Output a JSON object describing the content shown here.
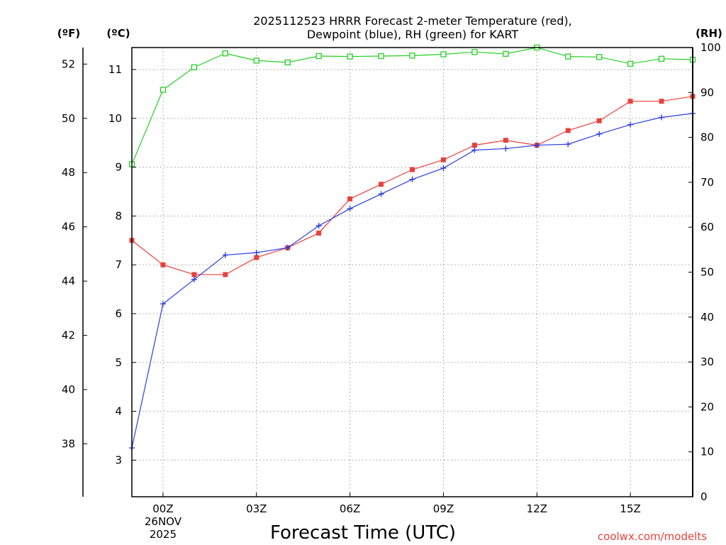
{
  "chart_data": {
    "type": "line",
    "title_lines": [
      "2025112523 HRRR Forecast 2-meter Temperature (red),",
      "Dewpoint (blue), RH (green) for KART"
    ],
    "xlabel": "Forecast Time (UTC)",
    "credit": "coolwx.com/modelts",
    "units": {
      "fahrenheit": "(ºF)",
      "celsius": "(ºC)",
      "rh": "(RH)"
    },
    "x_hours": [
      -1,
      0,
      1,
      2,
      3,
      4,
      5,
      6,
      7,
      8,
      9,
      10,
      11,
      12,
      13,
      14,
      15,
      16,
      17
    ],
    "x_ticks": [
      {
        "hour": 0,
        "lines": [
          "00Z",
          "26NOV",
          "2025"
        ]
      },
      {
        "hour": 3,
        "lines": [
          "03Z"
        ]
      },
      {
        "hour": 6,
        "lines": [
          "06Z"
        ]
      },
      {
        "hour": 9,
        "lines": [
          "09Z"
        ]
      },
      {
        "hour": 12,
        "lines": [
          "12Z"
        ]
      },
      {
        "hour": 15,
        "lines": [
          "15Z"
        ]
      }
    ],
    "xlim": [
      -1,
      17
    ],
    "celsius_axis": {
      "ylim": [
        2.25,
        11.45
      ],
      "ticks": [
        3,
        4,
        5,
        6,
        7,
        8,
        9,
        10,
        11
      ]
    },
    "fahrenheit_axis": {
      "ylim": [
        36.05,
        52.61
      ],
      "ticks": [
        38,
        40,
        42,
        44,
        46,
        48,
        50,
        52
      ]
    },
    "rh_axis": {
      "ylim": [
        0,
        100
      ],
      "ticks": [
        0,
        10,
        20,
        30,
        40,
        50,
        60,
        70,
        80,
        90,
        100
      ]
    },
    "grid": true,
    "series": [
      {
        "name": "Temperature",
        "axis": "celsius",
        "color": "#e8413c",
        "marker": "filled-square",
        "values": [
          7.5,
          7.0,
          6.8,
          6.8,
          7.15,
          7.35,
          7.65,
          8.35,
          8.65,
          8.95,
          9.15,
          9.45,
          9.55,
          9.45,
          9.75,
          9.95,
          10.35,
          10.35,
          10.45
        ]
      },
      {
        "name": "Dewpoint",
        "axis": "celsius",
        "color": "#2b3fe0",
        "marker": "plus",
        "values": [
          3.25,
          6.2,
          6.7,
          7.2,
          7.25,
          7.35,
          7.8,
          8.15,
          8.45,
          8.75,
          8.98,
          9.35,
          9.38,
          9.45,
          9.47,
          9.68,
          9.87,
          10.02,
          10.1
        ]
      },
      {
        "name": "RH",
        "axis": "rh",
        "color": "#22d022",
        "marker": "hollow-square",
        "values": [
          74,
          90.6,
          95.6,
          98.7,
          97.1,
          96.7,
          98.1,
          98.0,
          98.1,
          98.2,
          98.5,
          99.0,
          98.6,
          100,
          98.0,
          97.9,
          96.4,
          97.5,
          97.3
        ]
      }
    ]
  }
}
